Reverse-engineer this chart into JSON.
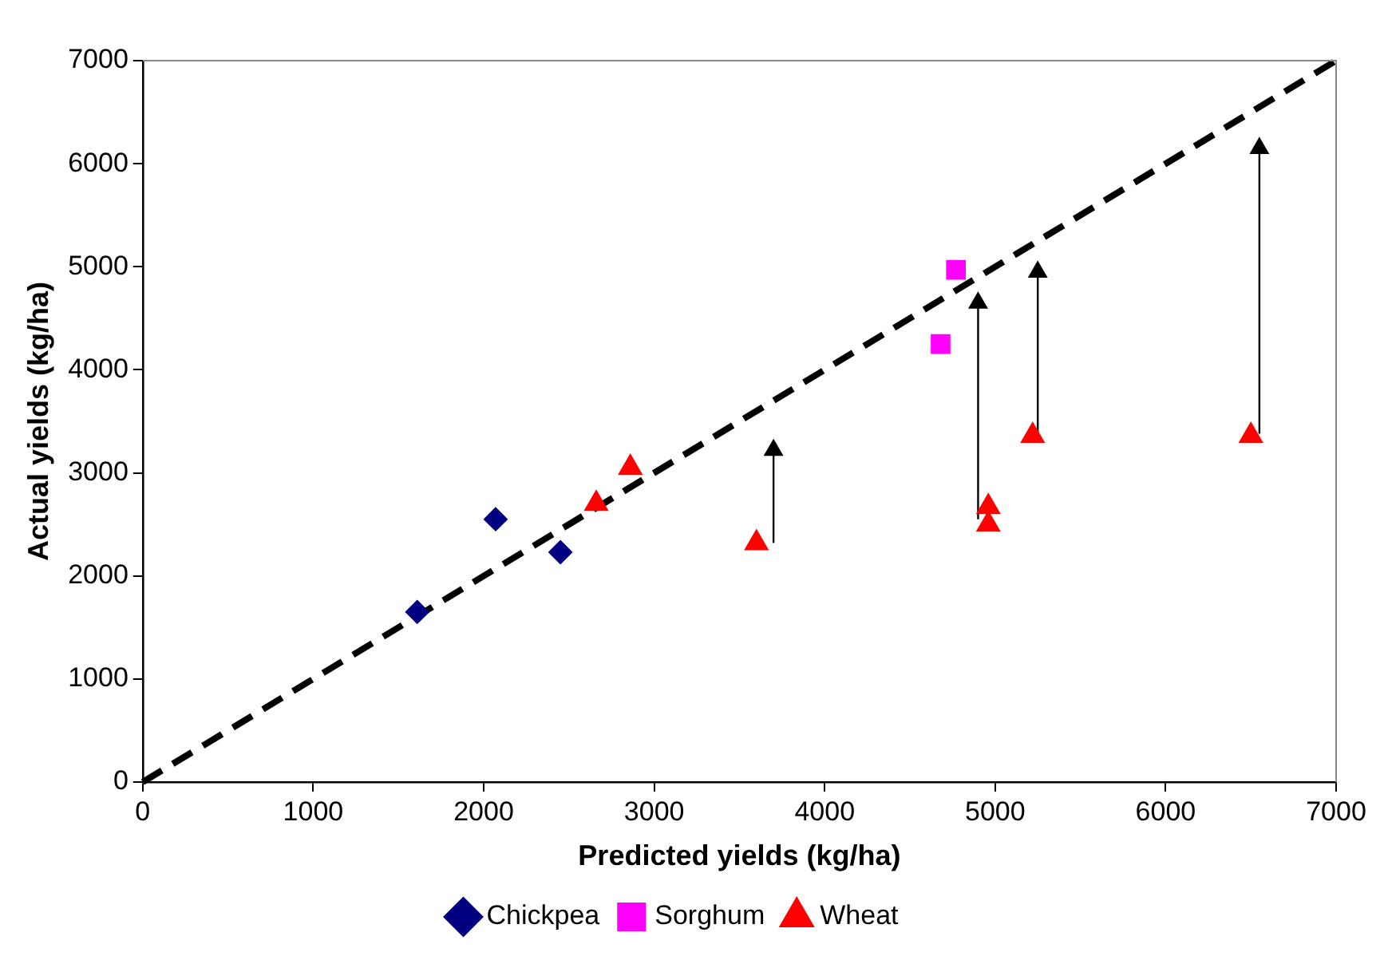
{
  "chart_data": {
    "type": "scatter",
    "xlabel": "Predicted yields (kg/ha)",
    "ylabel": "Actual yields (kg/ha)",
    "xlim": [
      0,
      7000
    ],
    "xticks": [
      0,
      1000,
      2000,
      3000,
      4000,
      5000,
      6000,
      7000
    ],
    "ylim": [
      0,
      7000
    ],
    "yticks": [
      0,
      1000,
      2000,
      3000,
      4000,
      5000,
      6000,
      7000
    ],
    "grid": false,
    "legend": "bottom",
    "series": [
      {
        "name": "Chickpea",
        "color": "#000080",
        "marker": "diamond",
        "x": [
          1610,
          2070,
          2450
        ],
        "values": [
          1650,
          2550,
          2230
        ]
      },
      {
        "name": "Sorghum",
        "color": "#ff00ff",
        "marker": "square",
        "x": [
          4680,
          4770
        ],
        "values": [
          4250,
          4970
        ]
      },
      {
        "name": "Wheat",
        "color": "#ff0000",
        "marker": "triangle",
        "x": [
          2660,
          2860,
          3600,
          4960,
          4960,
          5220,
          6500
        ],
        "values": [
          2700,
          3050,
          2320,
          2670,
          2500,
          3360,
          3360
        ]
      },
      {
        "type": "line",
        "color": "#000000",
        "marker": "none",
        "line_style": "dashed",
        "x": [
          0,
          7000
        ],
        "values": [
          0,
          7000
        ]
      },
      {
        "type": "line",
        "color": "#000000",
        "marker": "triangle",
        "line_style": "solid",
        "x": [
          3700,
          3700
        ],
        "values": [
          2320,
          3220
        ]
      },
      {
        "type": "line",
        "color": "#000000",
        "marker": "triangle",
        "line_style": "solid",
        "x": [
          4900,
          4900
        ],
        "values": [
          2550,
          4650
        ]
      },
      {
        "type": "line",
        "color": "#000000",
        "marker": "triangle",
        "line_style": "solid",
        "x": [
          5250,
          5250
        ],
        "values": [
          3380,
          4950
        ]
      },
      {
        "type": "line",
        "color": "#000000",
        "marker": "triangle",
        "line_style": "solid",
        "x": [
          6550,
          6550
        ],
        "values": [
          3380,
          6150
        ]
      }
    ]
  }
}
